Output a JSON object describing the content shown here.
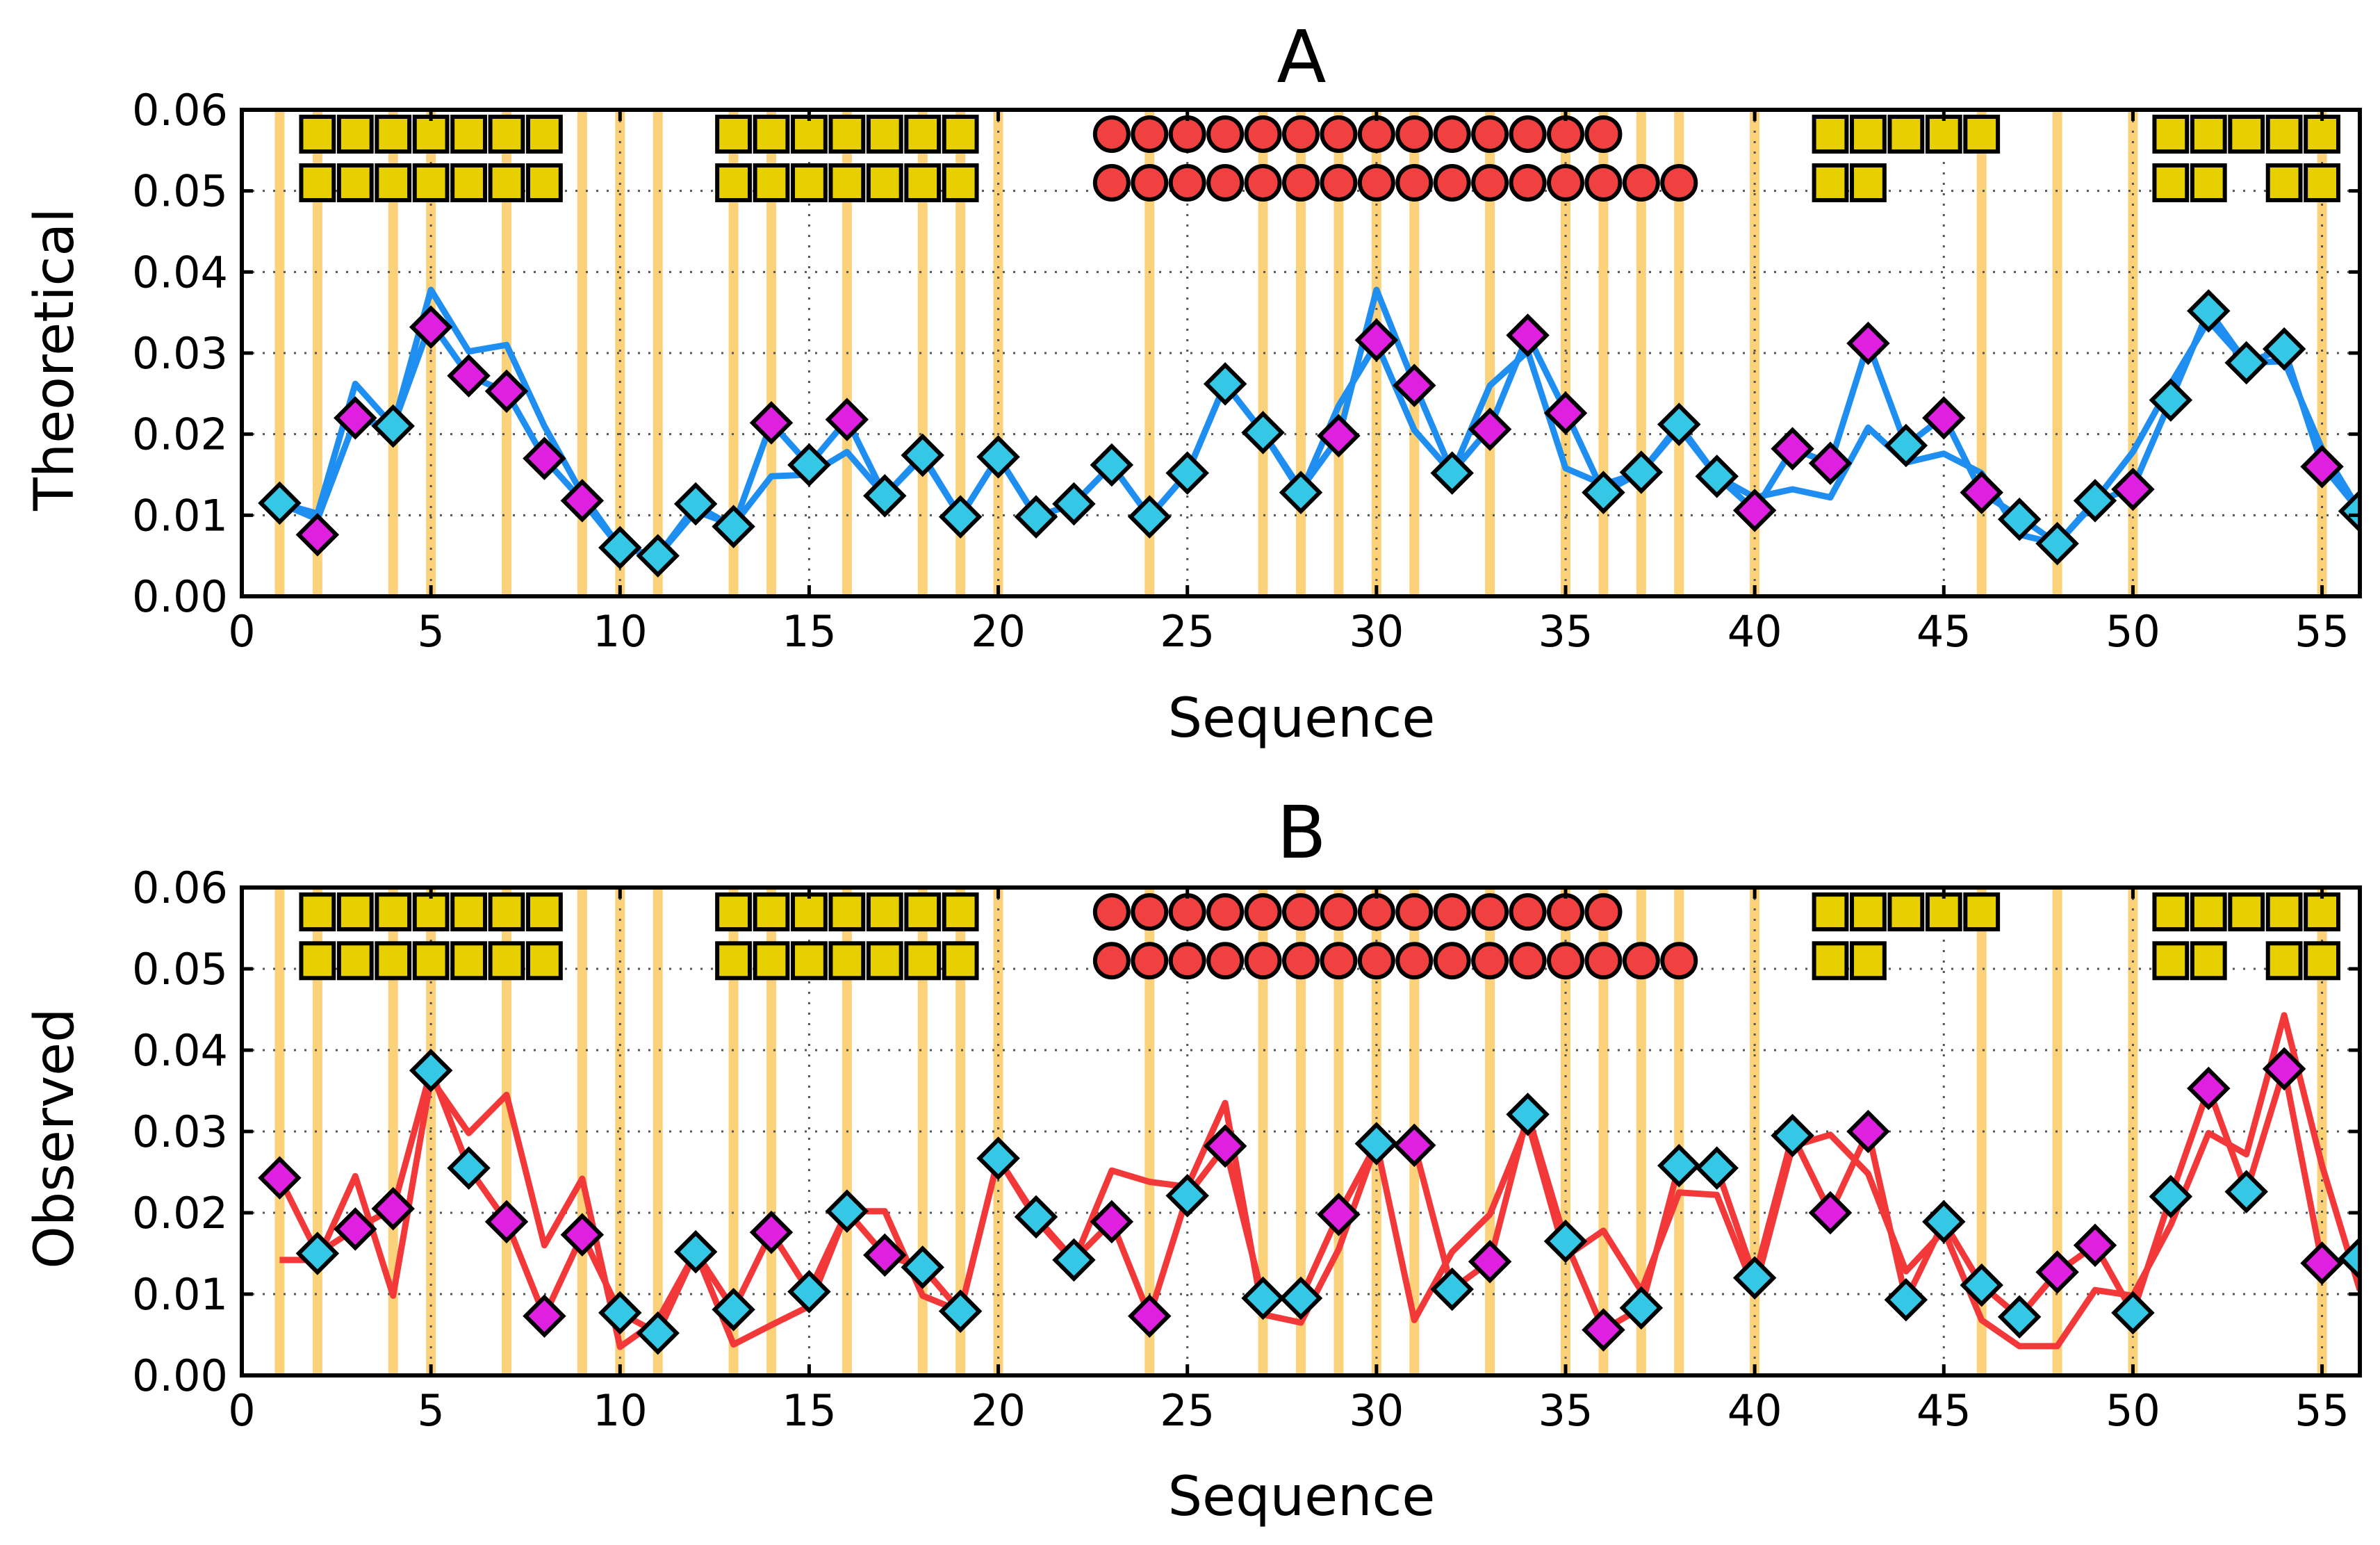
{
  "colors": {
    "background": "#ffffff",
    "highlight_band": "#fbd27a",
    "grid": "#555555",
    "helix_fill": "#e8d000",
    "circle_fill": "#f04040",
    "marker_cyan": "#35c8e6",
    "marker_magenta": "#e020e0",
    "line_blue": "#1e8ff0",
    "line_red": "#f23838",
    "edge": "#000000"
  },
  "chart_data": [
    {
      "id": "A",
      "type": "line",
      "title": "A",
      "xlabel": "Sequence",
      "ylabel": "Theoretical",
      "xlim": [
        0,
        56
      ],
      "ylim": [
        0,
        0.06
      ],
      "xticks": [
        0,
        5,
        10,
        15,
        20,
        25,
        30,
        35,
        40,
        45,
        50,
        55
      ],
      "xtick_labels": [
        "0",
        "5",
        "10",
        "15",
        "20",
        "25",
        "30",
        "35",
        "40",
        "45",
        "50",
        "55"
      ],
      "yticks": [
        0,
        0.01,
        0.02,
        0.03,
        0.04,
        0.05,
        0.06
      ],
      "ytick_labels": [
        "0.00",
        "0.01",
        "0.02",
        "0.03",
        "0.04",
        "0.05",
        "0.06"
      ],
      "grid": true,
      "highlight_positions": [
        1,
        2,
        4,
        5,
        7,
        9,
        10,
        11,
        13,
        14,
        16,
        18,
        19,
        20,
        24,
        27,
        28,
        29,
        30,
        31,
        33,
        35,
        36,
        37,
        38,
        40,
        46,
        48,
        50,
        55
      ],
      "series": [
        {
          "name": "line 1",
          "color": "#1e8ff0",
          "x": [
            1,
            2,
            3,
            4,
            5,
            6,
            7,
            8,
            9,
            10,
            11,
            12,
            13,
            14,
            15,
            16,
            17,
            18,
            19,
            20,
            21,
            22,
            23,
            24,
            25,
            26,
            27,
            28,
            29,
            30,
            31,
            32,
            33,
            34,
            35,
            36,
            37,
            38,
            39,
            40,
            41,
            42,
            43,
            44,
            45,
            46,
            47,
            48,
            49,
            50,
            51,
            52,
            53,
            54,
            55,
            56
          ],
          "values": [
            0.0115,
            0.0102,
            0.0262,
            0.021,
            0.0378,
            0.0302,
            0.031,
            0.021,
            0.0126,
            0.006,
            0.005,
            0.0112,
            0.0086,
            0.0214,
            0.0162,
            0.0218,
            0.0124,
            0.0174,
            0.0098,
            0.0172,
            0.0098,
            0.0114,
            0.0162,
            0.0098,
            0.0152,
            0.0262,
            0.0202,
            0.0132,
            0.0196,
            0.0378,
            0.0262,
            0.0153,
            0.0208,
            0.0322,
            0.0228,
            0.0128,
            0.0153,
            0.0212,
            0.0148,
            0.0106,
            0.0182,
            0.0164,
            0.0312,
            0.0186,
            0.0222,
            0.0128,
            0.0098,
            0.0065,
            0.0116,
            0.0134,
            0.0242,
            0.0353,
            0.0288,
            0.0305,
            0.0162,
            0.0105
          ]
        },
        {
          "name": "line 2",
          "color": "#1e8ff0",
          "x": [
            1,
            2,
            3,
            4,
            5,
            6,
            7,
            8,
            9,
            10,
            11,
            12,
            13,
            14,
            15,
            16,
            17,
            18,
            19,
            20,
            21,
            22,
            23,
            24,
            25,
            26,
            27,
            28,
            29,
            30,
            31,
            32,
            33,
            34,
            35,
            36,
            37,
            38,
            39,
            40,
            41,
            42,
            43,
            44,
            45,
            46,
            47,
            48,
            49,
            50,
            51,
            52,
            53,
            54,
            55,
            56
          ],
          "values": [
            0.0115,
            0.0095,
            0.0218,
            0.021,
            0.0338,
            0.0272,
            0.0252,
            0.017,
            0.0118,
            0.006,
            0.005,
            0.0105,
            0.0088,
            0.0148,
            0.015,
            0.0178,
            0.0124,
            0.0172,
            0.0098,
            0.0172,
            0.0098,
            0.0114,
            0.0162,
            0.0098,
            0.0152,
            0.0262,
            0.0202,
            0.0128,
            0.0235,
            0.0312,
            0.0205,
            0.0152,
            0.026,
            0.0302,
            0.0158,
            0.0138,
            0.0153,
            0.0208,
            0.0148,
            0.0122,
            0.0132,
            0.0122,
            0.0208,
            0.0165,
            0.0176,
            0.0152,
            0.0076,
            0.0065,
            0.0118,
            0.0178,
            0.0262,
            0.034,
            0.0288,
            0.029,
            0.0182,
            0.0105
          ]
        }
      ],
      "markers": {
        "cyan_positions": [
          1,
          4,
          10,
          11,
          12,
          13,
          15,
          17,
          18,
          19,
          20,
          21,
          22,
          23,
          24,
          25,
          26,
          27,
          28,
          32,
          36,
          37,
          38,
          39,
          44,
          47,
          48,
          49,
          51,
          52,
          53,
          54,
          56
        ],
        "magenta_positions": [
          2,
          3,
          5,
          6,
          7,
          8,
          9,
          14,
          16,
          29,
          30,
          31,
          33,
          34,
          35,
          40,
          41,
          42,
          43,
          45,
          46,
          50,
          55
        ],
        "values": [
          0.0115,
          0.0076,
          0.022,
          0.021,
          0.0332,
          0.0272,
          0.0253,
          0.017,
          0.0118,
          0.006,
          0.005,
          0.0114,
          0.0086,
          0.0214,
          0.0162,
          0.0218,
          0.0124,
          0.0174,
          0.0098,
          0.0172,
          0.0098,
          0.0114,
          0.0162,
          0.0098,
          0.0152,
          0.0262,
          0.0202,
          0.0128,
          0.0198,
          0.0316,
          0.026,
          0.0152,
          0.0206,
          0.0322,
          0.0226,
          0.0128,
          0.0153,
          0.0212,
          0.0148,
          0.0106,
          0.0182,
          0.0164,
          0.0312,
          0.0186,
          0.022,
          0.0128,
          0.0095,
          0.0065,
          0.0118,
          0.0132,
          0.0242,
          0.0352,
          0.0288,
          0.0305,
          0.016,
          0.0105
        ]
      },
      "structure_tracks": {
        "upper_y": 0.057,
        "lower_y": 0.051,
        "helix_upper_positions": [
          2,
          3,
          4,
          5,
          6,
          7,
          8,
          13,
          14,
          15,
          16,
          17,
          18,
          19,
          42,
          43,
          44,
          45,
          46,
          51,
          52,
          53,
          54,
          55
        ],
        "helix_lower_positions": [
          2,
          3,
          4,
          5,
          6,
          7,
          8,
          13,
          14,
          15,
          16,
          17,
          18,
          19,
          42,
          43,
          51,
          52,
          54,
          55
        ],
        "circle_upper_positions": [
          23,
          24,
          25,
          26,
          27,
          28,
          29,
          30,
          31,
          32,
          33,
          34,
          35,
          36
        ],
        "circle_lower_positions": [
          23,
          24,
          25,
          26,
          27,
          28,
          29,
          30,
          31,
          32,
          33,
          34,
          35,
          36,
          37,
          38
        ]
      }
    },
    {
      "id": "B",
      "type": "line",
      "title": "B",
      "xlabel": "Sequence",
      "ylabel": "Observed",
      "xlim": [
        0,
        56
      ],
      "ylim": [
        0,
        0.06
      ],
      "xticks": [
        0,
        5,
        10,
        15,
        20,
        25,
        30,
        35,
        40,
        45,
        50,
        55
      ],
      "xtick_labels": [
        "0",
        "5",
        "10",
        "15",
        "20",
        "25",
        "30",
        "35",
        "40",
        "45",
        "50",
        "55"
      ],
      "yticks": [
        0,
        0.01,
        0.02,
        0.03,
        0.04,
        0.05,
        0.06
      ],
      "ytick_labels": [
        "0.00",
        "0.01",
        "0.02",
        "0.03",
        "0.04",
        "0.05",
        "0.06"
      ],
      "grid": true,
      "highlight_positions": [
        1,
        2,
        4,
        5,
        7,
        9,
        10,
        11,
        13,
        14,
        16,
        18,
        19,
        20,
        24,
        27,
        28,
        29,
        30,
        31,
        33,
        35,
        36,
        37,
        38,
        40,
        46,
        48,
        50,
        55
      ],
      "series": [
        {
          "name": "line 1",
          "color": "#f23838",
          "x": [
            1,
            2,
            3,
            4,
            5,
            6,
            7,
            8,
            9,
            10,
            11,
            12,
            13,
            14,
            15,
            16,
            17,
            18,
            19,
            20,
            21,
            22,
            23,
            24,
            25,
            26,
            27,
            28,
            29,
            30,
            31,
            32,
            33,
            34,
            35,
            36,
            37,
            38,
            39,
            40,
            41,
            42,
            43,
            44,
            45,
            46,
            47,
            48,
            49,
            50,
            51,
            52,
            53,
            54,
            55,
            56
          ],
          "values": [
            0.0243,
            0.015,
            0.018,
            0.0205,
            0.0375,
            0.0255,
            0.0189,
            0.0073,
            0.0173,
            0.0077,
            0.0052,
            0.0152,
            0.0081,
            0.0176,
            0.0103,
            0.0202,
            0.0148,
            0.0133,
            0.0079,
            0.0267,
            0.0195,
            0.0142,
            0.0189,
            0.0073,
            0.0221,
            0.0282,
            0.0095,
            0.0095,
            0.0198,
            0.0285,
            0.0283,
            0.0106,
            0.014,
            0.0321,
            0.0165,
            0.0056,
            0.0083,
            0.0258,
            0.0255,
            0.012,
            0.0295,
            0.02,
            0.03,
            0.0093,
            0.0189,
            0.0111,
            0.0072,
            0.0127,
            0.016,
            0.0077,
            0.022,
            0.0353,
            0.0226,
            0.0377,
            0.0138,
            0.0144
          ]
        },
        {
          "name": "line 2",
          "color": "#f23838",
          "x": [
            1,
            2,
            3,
            4,
            5,
            6,
            7,
            8,
            9,
            10,
            11,
            12,
            13,
            14,
            15,
            16,
            17,
            18,
            19,
            20,
            21,
            22,
            23,
            24,
            25,
            26,
            27,
            28,
            29,
            30,
            31,
            32,
            33,
            34,
            35,
            36,
            37,
            38,
            39,
            40,
            41,
            42,
            43,
            44,
            45,
            46,
            47,
            48,
            49,
            50,
            51,
            52,
            53,
            54,
            55,
            56
          ],
          "values": [
            0.0142,
            0.0142,
            0.0245,
            0.0098,
            0.0365,
            0.0298,
            0.0345,
            0.016,
            0.0242,
            0.0035,
            0.0068,
            0.0152,
            0.0038,
            0.0062,
            0.0085,
            0.0202,
            0.0202,
            0.0098,
            0.0079,
            0.0267,
            0.0192,
            0.014,
            0.0252,
            0.0238,
            0.0232,
            0.0335,
            0.0075,
            0.0065,
            0.0155,
            0.0285,
            0.0068,
            0.0152,
            0.0198,
            0.0312,
            0.0146,
            0.0178,
            0.0104,
            0.0225,
            0.0222,
            0.0105,
            0.0282,
            0.0296,
            0.0248,
            0.0128,
            0.0178,
            0.0068,
            0.0036,
            0.0036,
            0.0105,
            0.0098,
            0.0185,
            0.0298,
            0.0272,
            0.0443,
            0.0258,
            0.0105
          ]
        }
      ],
      "markers": {
        "cyan_positions": [
          2,
          5,
          6,
          10,
          11,
          12,
          13,
          15,
          16,
          18,
          19,
          20,
          21,
          22,
          25,
          27,
          28,
          30,
          32,
          34,
          35,
          37,
          38,
          39,
          40,
          41,
          44,
          45,
          46,
          47,
          50,
          51,
          53,
          56
        ],
        "magenta_positions": [
          1,
          3,
          4,
          7,
          8,
          9,
          14,
          17,
          23,
          24,
          26,
          29,
          31,
          33,
          36,
          42,
          43,
          48,
          49,
          52,
          54,
          55
        ],
        "values": [
          0.0243,
          0.015,
          0.018,
          0.0205,
          0.0375,
          0.0255,
          0.0189,
          0.0073,
          0.0173,
          0.0077,
          0.0052,
          0.0152,
          0.0081,
          0.0176,
          0.0103,
          0.0202,
          0.0148,
          0.0133,
          0.0079,
          0.0267,
          0.0195,
          0.0142,
          0.0189,
          0.0073,
          0.0221,
          0.0282,
          0.0095,
          0.0095,
          0.0198,
          0.0285,
          0.0283,
          0.0106,
          0.014,
          0.0321,
          0.0165,
          0.0056,
          0.0083,
          0.0258,
          0.0255,
          0.012,
          0.0295,
          0.02,
          0.03,
          0.0093,
          0.0189,
          0.0111,
          0.0072,
          0.0127,
          0.016,
          0.0077,
          0.022,
          0.0353,
          0.0226,
          0.0377,
          0.0138,
          0.0144
        ]
      },
      "structure_tracks": {
        "upper_y": 0.057,
        "lower_y": 0.051,
        "helix_upper_positions": [
          2,
          3,
          4,
          5,
          6,
          7,
          8,
          13,
          14,
          15,
          16,
          17,
          18,
          19,
          42,
          43,
          44,
          45,
          46,
          51,
          52,
          53,
          54,
          55
        ],
        "helix_lower_positions": [
          2,
          3,
          4,
          5,
          6,
          7,
          8,
          13,
          14,
          15,
          16,
          17,
          18,
          19,
          42,
          43,
          51,
          52,
          54,
          55
        ],
        "circle_upper_positions": [
          23,
          24,
          25,
          26,
          27,
          28,
          29,
          30,
          31,
          32,
          33,
          34,
          35,
          36
        ],
        "circle_lower_positions": [
          23,
          24,
          25,
          26,
          27,
          28,
          29,
          30,
          31,
          32,
          33,
          34,
          35,
          36,
          37,
          38
        ]
      }
    }
  ]
}
